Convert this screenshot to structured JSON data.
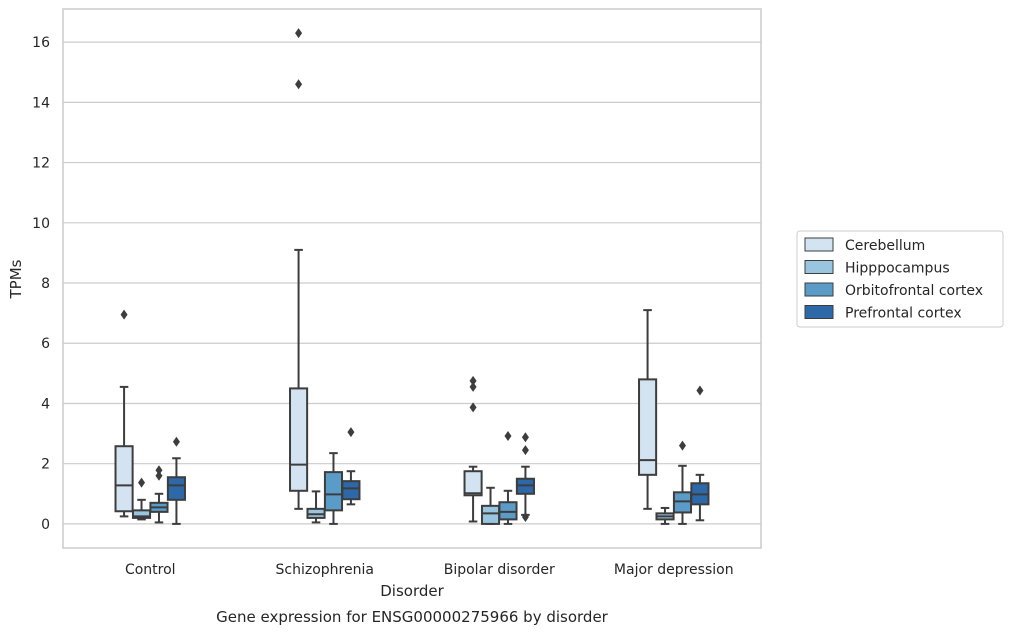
{
  "chart_data": {
    "type": "box",
    "title": "Gene expression for ENSG00000275966 by disorder",
    "xlabel": "Disorder",
    "ylabel": "TPMs",
    "ylim": [
      -0.8,
      17.1
    ],
    "yticks": [
      0,
      2,
      4,
      6,
      8,
      10,
      12,
      14,
      16
    ],
    "grid": true,
    "legend_position": "right",
    "categories": [
      "Control",
      "Schizophrenia",
      "Bipolar disorder",
      "Major depression"
    ],
    "series": [
      {
        "name": "Cerebellum",
        "color": "#d4e3f2",
        "boxes": [
          {
            "whisker_low": 0.25,
            "q1": 0.42,
            "median": 1.28,
            "q3": 2.58,
            "whisker_high": 4.55,
            "outliers": [
              6.95
            ]
          },
          {
            "whisker_low": 0.5,
            "q1": 1.1,
            "median": 1.97,
            "q3": 4.5,
            "whisker_high": 9.1,
            "outliers": [
              14.6,
              16.3
            ]
          },
          {
            "whisker_low": 0.08,
            "q1": 0.95,
            "median": 1.02,
            "q3": 1.75,
            "whisker_high": 1.9,
            "outliers": [
              3.87,
              4.55,
              4.75
            ]
          },
          {
            "whisker_low": 0.5,
            "q1": 1.63,
            "median": 2.12,
            "q3": 4.8,
            "whisker_high": 7.1,
            "outliers": []
          }
        ]
      },
      {
        "name": "Hipppocampus",
        "color": "#9ac5df",
        "boxes": [
          {
            "whisker_low": 0.15,
            "q1": 0.2,
            "median": 0.25,
            "q3": 0.45,
            "whisker_high": 0.8,
            "outliers": [
              1.37
            ]
          },
          {
            "whisker_low": 0.05,
            "q1": 0.2,
            "median": 0.32,
            "q3": 0.5,
            "whisker_high": 1.08,
            "outliers": []
          },
          {
            "whisker_low": 0.0,
            "q1": 0.0,
            "median": 0.35,
            "q3": 0.6,
            "whisker_high": 1.2,
            "outliers": []
          },
          {
            "whisker_low": 0.0,
            "q1": 0.15,
            "median": 0.25,
            "q3": 0.35,
            "whisker_high": 0.53,
            "outliers": []
          }
        ]
      },
      {
        "name": "Orbitofrontal cortex",
        "color": "#5a9bc8",
        "boxes": [
          {
            "whisker_low": 0.05,
            "q1": 0.4,
            "median": 0.55,
            "q3": 0.7,
            "whisker_high": 1.0,
            "outliers": [
              1.6,
              1.78
            ]
          },
          {
            "whisker_low": 0.0,
            "q1": 0.45,
            "median": 0.98,
            "q3": 1.72,
            "whisker_high": 2.35,
            "outliers": []
          },
          {
            "whisker_low": 0.0,
            "q1": 0.15,
            "median": 0.4,
            "q3": 0.72,
            "whisker_high": 1.1,
            "outliers": [
              2.92
            ]
          },
          {
            "whisker_low": 0.0,
            "q1": 0.38,
            "median": 0.75,
            "q3": 1.05,
            "whisker_high": 1.93,
            "outliers": [
              2.6
            ]
          }
        ]
      },
      {
        "name": "Prefrontal cortex",
        "color": "#2d68a8",
        "boxes": [
          {
            "whisker_low": 0.0,
            "q1": 0.8,
            "median": 1.28,
            "q3": 1.55,
            "whisker_high": 2.18,
            "outliers": [
              2.73
            ]
          },
          {
            "whisker_low": 0.65,
            "q1": 0.82,
            "median": 1.18,
            "q3": 1.42,
            "whisker_high": 1.75,
            "outliers": [
              3.05
            ]
          },
          {
            "whisker_low": 0.3,
            "q1": 1.0,
            "median": 1.28,
            "q3": 1.5,
            "whisker_high": 1.9,
            "outliers": [
              0.23,
              2.45,
              2.88
            ]
          },
          {
            "whisker_low": 0.12,
            "q1": 0.65,
            "median": 0.98,
            "q3": 1.35,
            "whisker_high": 1.63,
            "outliers": [
              4.43
            ]
          }
        ]
      }
    ]
  }
}
